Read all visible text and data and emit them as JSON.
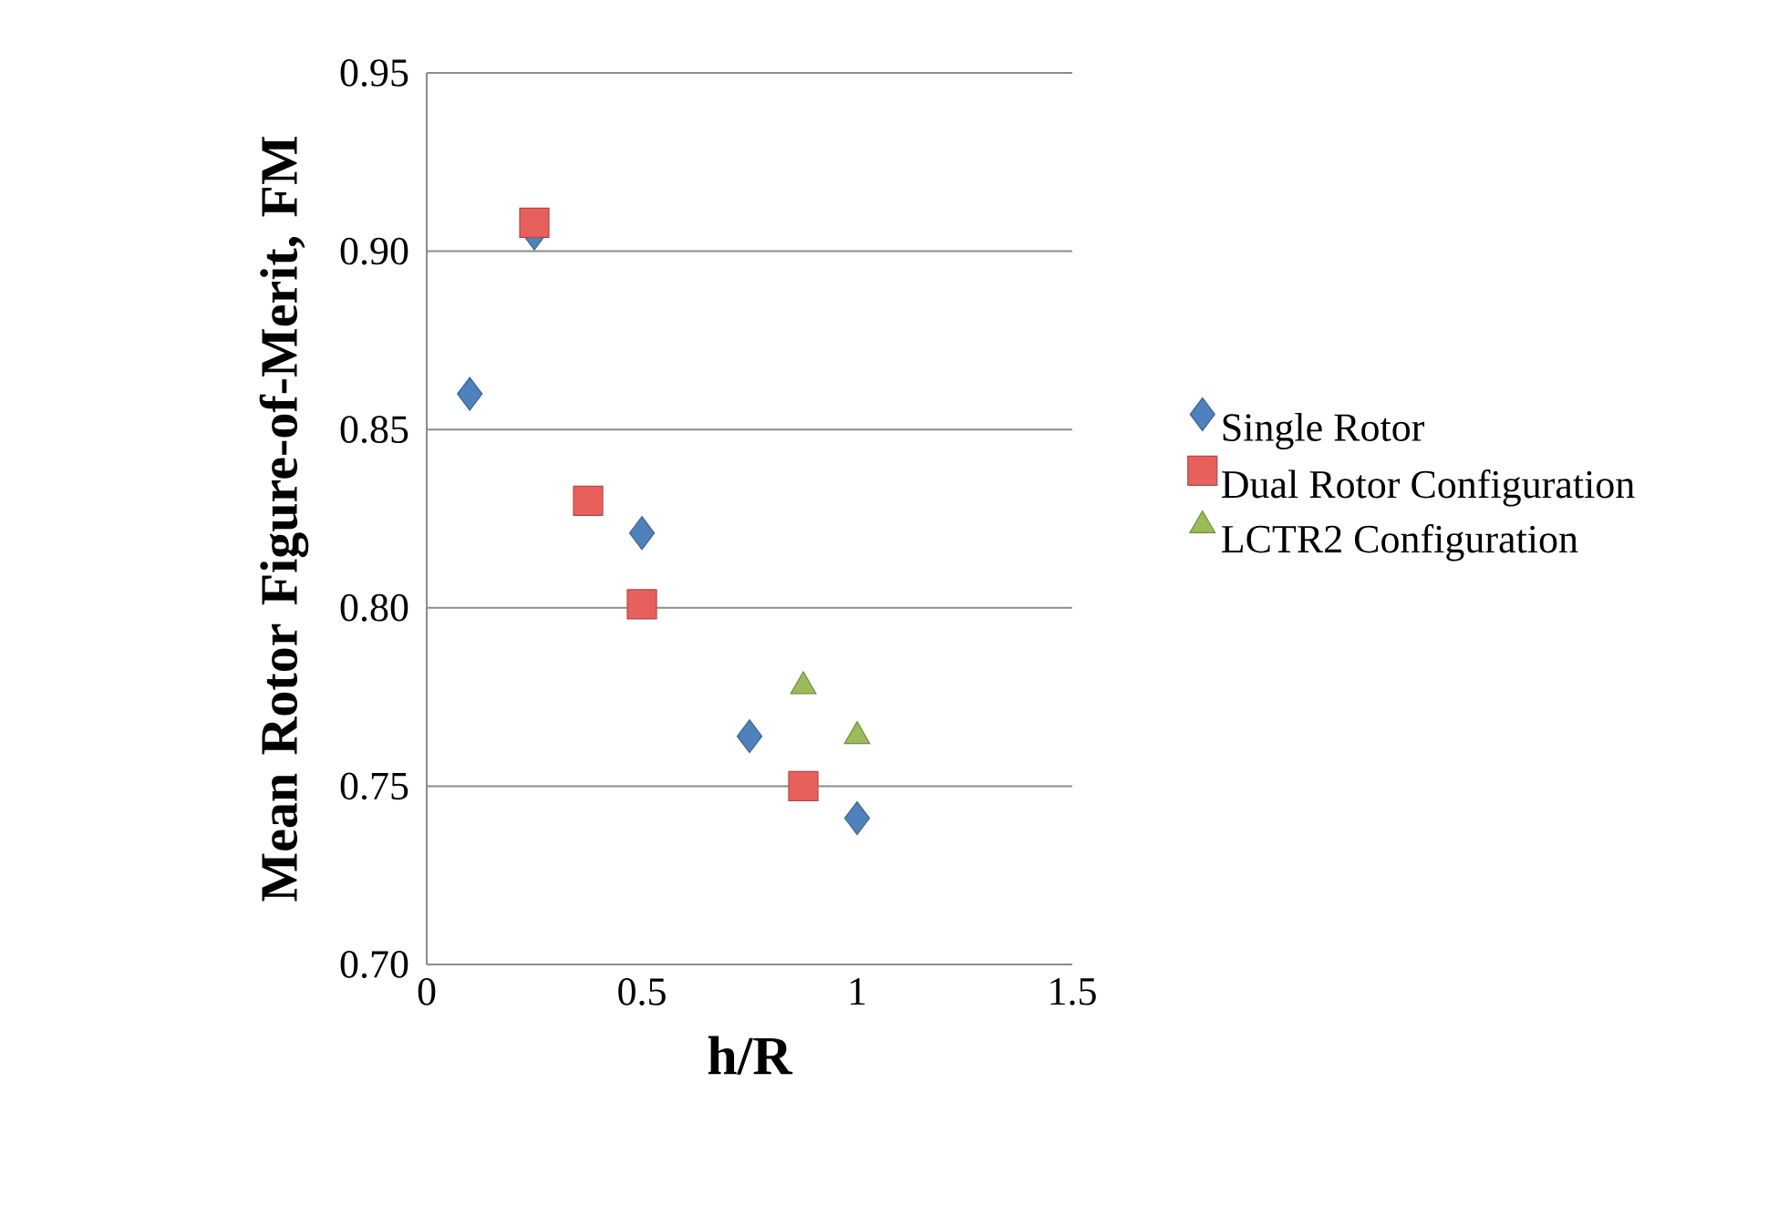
{
  "chart_data": {
    "type": "scatter",
    "xlabel": "h/R",
    "ylabel": "Mean Rotor Figure-of-Merit, FM",
    "xlim": [
      0,
      1.5
    ],
    "ylim": [
      0.7,
      0.95
    ],
    "xticks": [
      0,
      0.5,
      1,
      1.5
    ],
    "yticks": [
      {
        "value": 0.7,
        "label": "0.70"
      },
      {
        "value": 0.75,
        "label": "0.75"
      },
      {
        "value": 0.8,
        "label": "0.80"
      },
      {
        "value": 0.85,
        "label": "0.85"
      },
      {
        "value": 0.9,
        "label": "0.90"
      },
      {
        "value": 0.95,
        "label": "0.95"
      }
    ],
    "grid": "y",
    "legend": "right",
    "series": [
      {
        "name": "Single Rotor",
        "color": "#4f81bd",
        "marker": "diamond",
        "x": [
          0.1,
          0.25,
          0.5,
          0.75,
          1.0
        ],
        "values": [
          0.86,
          0.905,
          0.821,
          0.764,
          0.741
        ]
      },
      {
        "name": "Dual Rotor Configuration",
        "color": "#e8605c",
        "marker": "square",
        "x": [
          0.25,
          0.375,
          0.5,
          0.875
        ],
        "values": [
          0.908,
          0.83,
          0.801,
          0.75
        ]
      },
      {
        "name": "LCTR2 Configuration",
        "color": "#9bbb59",
        "marker": "triangle",
        "x": [
          0.875,
          1.0
        ],
        "values": [
          0.778,
          0.764
        ]
      }
    ]
  }
}
